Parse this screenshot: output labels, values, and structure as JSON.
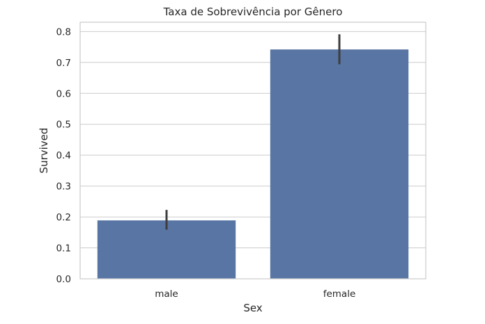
{
  "chart_data": {
    "type": "bar",
    "title": "Taxa de Sobrevivência por Gênero",
    "xlabel": "Sex",
    "ylabel": "Survived",
    "categories": [
      "male",
      "female"
    ],
    "values": [
      0.189,
      0.742
    ],
    "ci": [
      [
        0.159,
        0.223
      ],
      [
        0.694,
        0.791
      ]
    ],
    "ylim": [
      0,
      0.83
    ],
    "yticks": [
      0.0,
      0.1,
      0.2,
      0.3,
      0.4,
      0.5,
      0.6,
      0.7,
      0.8
    ],
    "ytick_labels": [
      "0.0",
      "0.1",
      "0.2",
      "0.3",
      "0.4",
      "0.5",
      "0.6",
      "0.7",
      "0.8"
    ],
    "grid": true,
    "colors": {
      "bar": "#5975a4",
      "error": "#3d3d3d",
      "grid": "#cccccc",
      "text": "#262626"
    }
  }
}
